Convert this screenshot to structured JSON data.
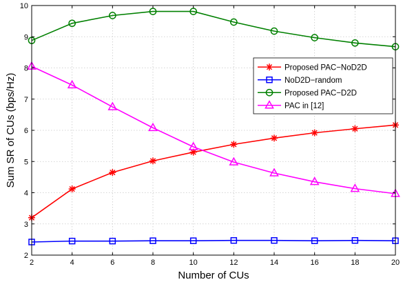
{
  "chart_data": {
    "type": "line",
    "title": "",
    "xlabel": "Number of CUs",
    "ylabel": "Sum SR of CUs (bps/Hz)",
    "xlim": [
      2,
      20
    ],
    "ylim": [
      2,
      10
    ],
    "xticks": [
      "2",
      "4",
      "6",
      "8",
      "10",
      "12",
      "14",
      "16",
      "18",
      "20"
    ],
    "yticks": [
      "2",
      "3",
      "4",
      "5",
      "6",
      "7",
      "8",
      "9",
      "10"
    ],
    "grid": true,
    "legend_position": "right",
    "x": [
      2,
      4,
      6,
      8,
      10,
      12,
      14,
      16,
      18,
      20
    ],
    "series": [
      {
        "name": "Proposed PAC−NoD2D",
        "color": "#ff0000",
        "marker": "asterisk",
        "values": [
          3.2,
          4.12,
          4.65,
          5.02,
          5.3,
          5.55,
          5.75,
          5.92,
          6.05,
          6.17
        ]
      },
      {
        "name": "NoD2D−random",
        "color": "#0000ff",
        "marker": "square",
        "values": [
          2.42,
          2.45,
          2.45,
          2.46,
          2.46,
          2.47,
          2.47,
          2.46,
          2.47,
          2.46
        ]
      },
      {
        "name": "Proposed PAC−D2D",
        "color": "#008000",
        "marker": "circle",
        "values": [
          8.88,
          9.43,
          9.68,
          9.81,
          9.81,
          9.47,
          9.18,
          8.97,
          8.8,
          8.68
        ]
      },
      {
        "name": "PAC in [12]",
        "color": "#ff00ff",
        "marker": "triangle",
        "values": [
          8.05,
          7.45,
          6.75,
          6.08,
          5.47,
          4.98,
          4.63,
          4.35,
          4.13,
          3.97
        ]
      }
    ]
  }
}
